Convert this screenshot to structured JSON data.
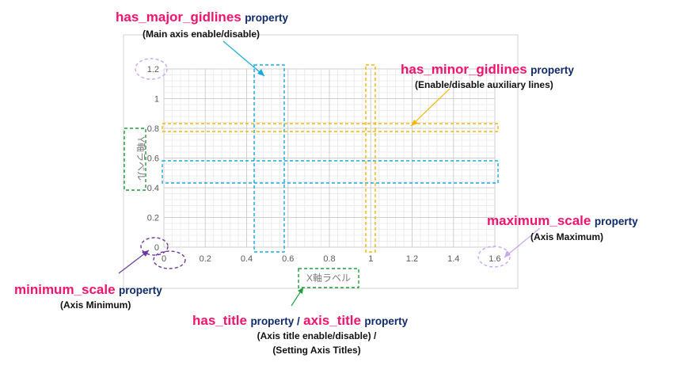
{
  "chart_data": {
    "type": "line",
    "xlabel": "X軸ラベル",
    "ylabel": "Y軸ラベル",
    "xlim": [
      0,
      1.6
    ],
    "ylim": [
      0,
      1.2
    ],
    "x_ticks": [
      "0",
      "0.2",
      "0.4",
      "0.6",
      "0.8",
      "1",
      "1.2",
      "1.4",
      "1.6"
    ],
    "y_ticks": [
      "0",
      "0.2",
      "0.4",
      "0.6",
      "0.8",
      "1",
      "1.2"
    ],
    "major_grid": true,
    "minor_grid": true,
    "series": []
  },
  "annotations": {
    "has_major_gridlines": {
      "name": "has_major_gidlines",
      "suffix": "property",
      "desc": "(Main axis enable/disable)"
    },
    "has_minor_gridlines": {
      "name": "has_minor_gidlines",
      "suffix": "property",
      "desc": "(Enable/disable auxiliary lines)"
    },
    "maximum_scale": {
      "name": "maximum_scale",
      "suffix": "property",
      "desc": "(Axis Maximum)"
    },
    "minimum_scale": {
      "name": "minimum_scale",
      "suffix": "property",
      "desc": "(Axis Minimum)"
    },
    "title": {
      "name1": "has_title",
      "suffix1": "property /",
      "name2": "axis_title",
      "suffix2": "property",
      "desc1": "(Axis title enable/disable) /",
      "desc2": "(Setting Axis Titles)"
    }
  },
  "colors": {
    "accent_pink": "#f0146e",
    "property_navy": "#0f2a6a",
    "major_box_blue": "#1aa8e0",
    "minor_box_orange": "#f2b705",
    "title_box_green": "#1f9e3a",
    "scale_purple": "#6a3aa0",
    "max_lavender": "#c9a8ee"
  }
}
